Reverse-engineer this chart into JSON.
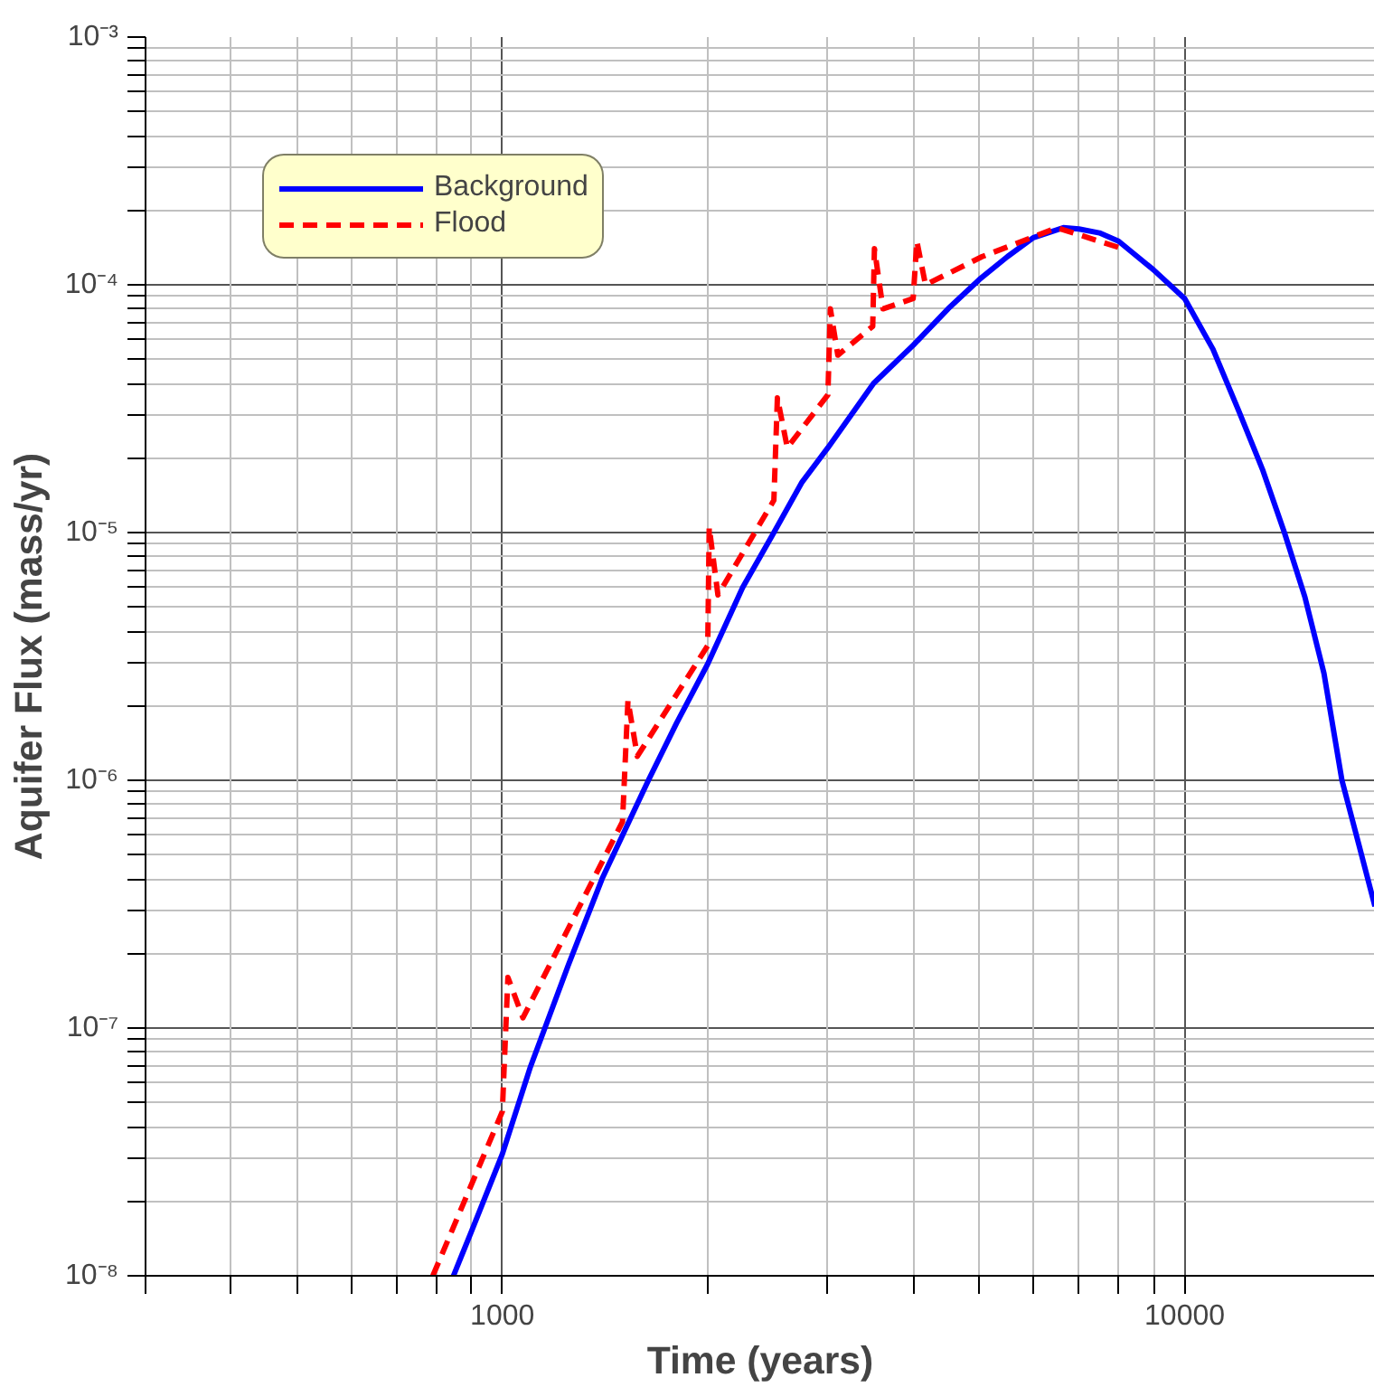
{
  "chart_data": {
    "type": "line",
    "xlabel": "Time (years)",
    "ylabel": "Aquifer Flux (mass/yr)",
    "log": "xy",
    "grid": true,
    "legend": "top left",
    "xlim": [
      300,
      19000
    ],
    "ylim": [
      1e-08,
      0.001
    ],
    "xticks": [
      {
        "value": 300,
        "label": null
      },
      {
        "value": 400,
        "label": null
      },
      {
        "value": 500,
        "label": null
      },
      {
        "value": 600,
        "label": null
      },
      {
        "value": 700,
        "label": null
      },
      {
        "value": 800,
        "label": null
      },
      {
        "value": 900,
        "label": null
      },
      1000,
      {
        "value": 2000,
        "label": null
      },
      {
        "value": 3000,
        "label": null
      },
      {
        "value": 4000,
        "label": null
      },
      {
        "value": 5000,
        "label": null
      },
      {
        "value": 6000,
        "label": null
      },
      {
        "value": 7000,
        "label": null
      },
      {
        "value": 8000,
        "label": null
      },
      {
        "value": 9000,
        "label": null
      },
      10000
    ],
    "yticks": [
      {
        "value": 1e-08,
        "label": "10⁻⁸"
      },
      {
        "value": 2e-08,
        "label": null
      },
      {
        "value": 3e-08,
        "label": null
      },
      {
        "value": 4e-08,
        "label": null
      },
      {
        "value": 5e-08,
        "label": null
      },
      {
        "value": 6e-08,
        "label": null
      },
      {
        "value": 7e-08,
        "label": null
      },
      {
        "value": 8e-08,
        "label": null
      },
      {
        "value": 9e-08,
        "label": null
      },
      {
        "value": 1e-07,
        "label": "10⁻⁷"
      },
      {
        "value": 2e-07,
        "label": null
      },
      {
        "value": 3e-07,
        "label": null
      },
      {
        "value": 4e-07,
        "label": null
      },
      {
        "value": 5e-07,
        "label": null
      },
      {
        "value": 6e-07,
        "label": null
      },
      {
        "value": 7e-07,
        "label": null
      },
      {
        "value": 8e-07,
        "label": null
      },
      {
        "value": 9e-07,
        "label": null
      },
      {
        "value": 1e-06,
        "label": "10⁻⁶"
      },
      {
        "value": 2e-06,
        "label": null
      },
      {
        "value": 3e-06,
        "label": null
      },
      {
        "value": 4e-06,
        "label": null
      },
      {
        "value": 5e-06,
        "label": null
      },
      {
        "value": 6e-06,
        "label": null
      },
      {
        "value": 7e-06,
        "label": null
      },
      {
        "value": 8e-06,
        "label": null
      },
      {
        "value": 9e-06,
        "label": null
      },
      {
        "value": 1e-05,
        "label": "10⁻⁵"
      },
      {
        "value": 2e-05,
        "label": null
      },
      {
        "value": 3e-05,
        "label": null
      },
      {
        "value": 4e-05,
        "label": null
      },
      {
        "value": 5e-05,
        "label": null
      },
      {
        "value": 6e-05,
        "label": null
      },
      {
        "value": 7e-05,
        "label": null
      },
      {
        "value": 8e-05,
        "label": null
      },
      {
        "value": 9e-05,
        "label": null
      },
      {
        "value": 0.0001,
        "label": "10⁻⁴"
      },
      {
        "value": 0.0002,
        "label": null
      },
      {
        "value": 0.0003,
        "label": null
      },
      {
        "value": 0.0004,
        "label": null
      },
      {
        "value": 0.0005,
        "label": null
      },
      {
        "value": 0.0006,
        "label": null
      },
      {
        "value": 0.0007,
        "label": null
      },
      {
        "value": 0.0008,
        "label": null
      },
      {
        "value": 0.0009,
        "label": null
      },
      {
        "value": 0.001,
        "label": "10⁻³"
      }
    ],
    "series": [
      {
        "name": "Background",
        "color": "#0000ff",
        "line_style": "solid",
        "x": [
          848,
          900,
          1000,
          1100,
          1250,
          1400,
          1637,
          1800,
          2000,
          2250,
          2500,
          2750,
          3000,
          3500,
          4000,
          4500,
          5000,
          5500,
          6000,
          6640,
          7000,
          7500,
          8000,
          9000,
          10000,
          11000,
          12000,
          13000,
          14000,
          15000,
          16000,
          17000,
          18000,
          19000
        ],
        "values": [
          1e-08,
          1.5e-08,
          3.1e-08,
          7e-08,
          1.8e-07,
          4e-07,
          1e-06,
          1.7e-06,
          2.95e-06,
          6e-06,
          1e-05,
          1.6e-05,
          2.2e-05,
          4e-05,
          5.7e-05,
          8e-05,
          0.000105,
          0.00013,
          0.000155,
          0.00017,
          0.000168,
          0.000162,
          0.00015,
          0.000115,
          8.8e-05,
          5.5e-05,
          3.1e-05,
          1.8e-05,
          1e-05,
          5.5e-06,
          2.7e-06,
          1e-06,
          5.5e-07,
          3.1e-07
        ]
      },
      {
        "name": "Flood",
        "color": "#ff0000",
        "line_style": "dashed",
        "x": [
          791,
          1000,
          1019,
          1072,
          1500,
          1528,
          1577,
          2000,
          2010,
          2070,
          2500,
          2530,
          2616,
          3000,
          3025,
          3102,
          3490,
          3510,
          3613,
          4000,
          4050,
          4170,
          5050,
          6500,
          8100
        ],
        "values": [
          1e-08,
          4.6e-08,
          1.6e-07,
          1.1e-07,
          6.8e-07,
          2.1e-06,
          1.25e-06,
          3.5e-06,
          1.05e-05,
          5.6e-06,
          1.35e-05,
          3.5e-05,
          2.2e-05,
          3.6e-05,
          8e-05,
          5.2e-05,
          6.8e-05,
          0.00014,
          8e-05,
          8.8e-05,
          0.00015,
          0.0001,
          0.00013,
          0.00017,
          0.00014
        ]
      }
    ]
  }
}
